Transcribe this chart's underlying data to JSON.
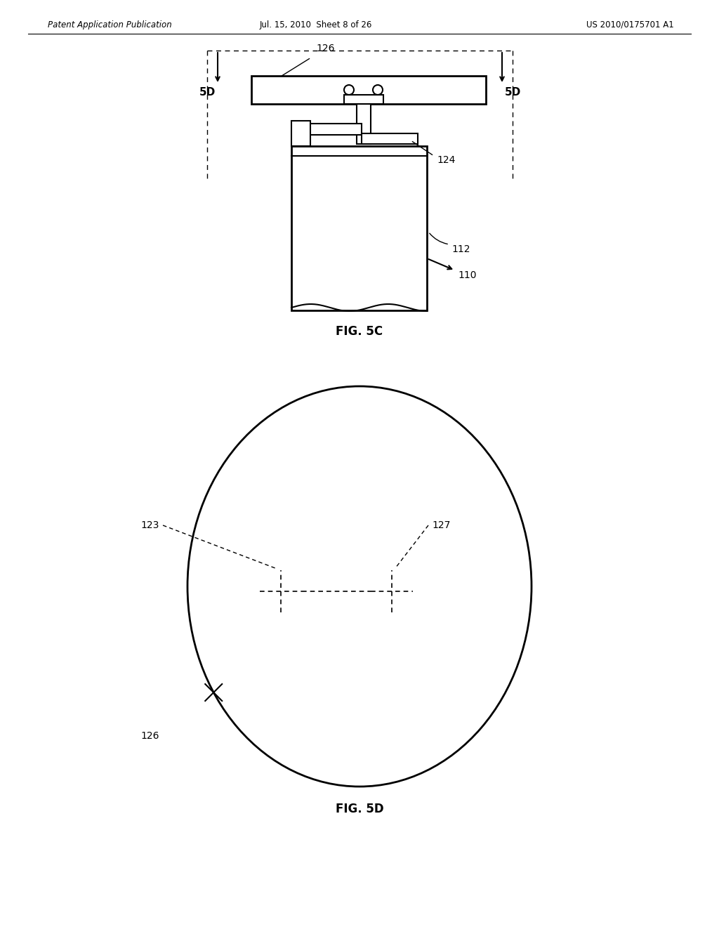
{
  "bg_color": "#ffffff",
  "header_left": "Patent Application Publication",
  "header_mid": "Jul. 15, 2010  Sheet 8 of 26",
  "header_right": "US 2010/0175701 A1",
  "fig5c_label": "FIG. 5C",
  "fig5d_label": "FIG. 5D",
  "label_5D_left": "5D",
  "label_5D_right": "5D",
  "label_126_top": "126",
  "label_124": "124",
  "label_112": "112",
  "label_110": "110",
  "label_123": "123",
  "label_127": "127",
  "label_126_bot": "126"
}
